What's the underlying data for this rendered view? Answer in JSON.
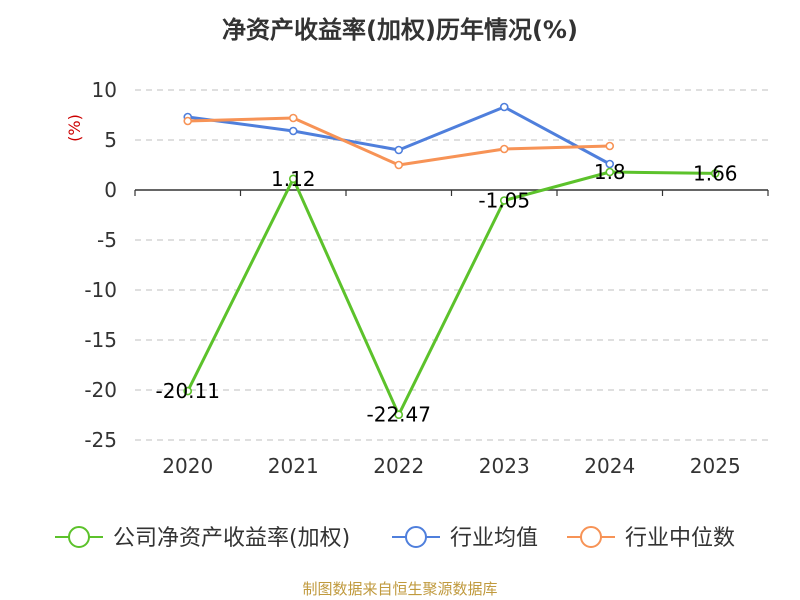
{
  "title": "净资产收益率(加权)历年情况(%)",
  "source": "制图数据来自恒生聚源数据库",
  "chart_data": {
    "type": "line",
    "title": "净资产收益率(加权)历年情况(%)",
    "ylabel": "(%)",
    "x": [
      "2020",
      "2021",
      "2022",
      "2023",
      "2024",
      "2025"
    ],
    "ylim": [
      -25,
      10
    ],
    "yticks": [
      10,
      5,
      0,
      -5,
      -10,
      -15,
      -20,
      -25
    ],
    "grid": true,
    "legend_position": "bottom",
    "series": [
      {
        "name": "公司净资产收益率(加权)",
        "color": "#5cc22b",
        "values": [
          -20.11,
          1.12,
          -22.47,
          -1.05,
          1.8,
          1.66
        ],
        "labels": [
          "-20.11",
          "1.12",
          "-22.47",
          "-1.05",
          "1.8",
          "1.66"
        ]
      },
      {
        "name": "行业均值",
        "color": "#4f7fdc",
        "values": [
          7.3,
          5.9,
          4.0,
          8.3,
          2.6,
          null
        ]
      },
      {
        "name": "行业中位数",
        "color": "#f79356",
        "values": [
          6.9,
          7.2,
          2.5,
          4.1,
          4.4,
          null
        ]
      }
    ]
  }
}
